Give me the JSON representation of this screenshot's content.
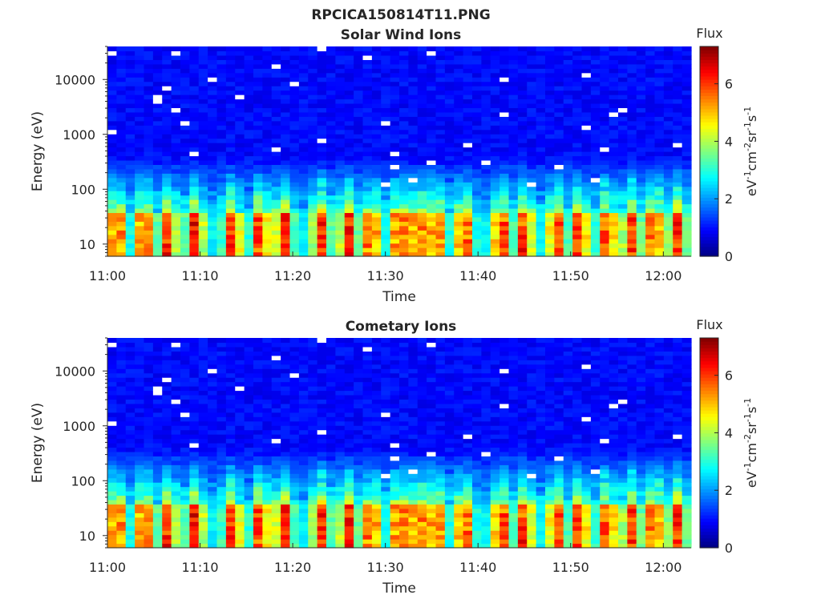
{
  "figure": {
    "filename": "RPCICA150814T11.PNG"
  },
  "chart_data": [
    {
      "type": "heatmap",
      "title": "Solar Wind Ions",
      "xlabel": "Time",
      "ylabel": "Energy (eV)",
      "x_tick_labels": [
        "11:00",
        "11:10",
        "11:20",
        "11:30",
        "11:40",
        "11:50",
        "12:00"
      ],
      "x_range": [
        "11:00",
        "12:03"
      ],
      "y_scale": "log",
      "y_tick_labels": [
        "10",
        "100",
        "1000",
        "10000"
      ],
      "y_range": [
        6,
        40000
      ],
      "colorbar": {
        "title": "Flux",
        "label": "eV-1cm-2sr-1s-1",
        "label_parts": [
          {
            "t": "eV",
            "sup": false
          },
          {
            "t": "-1",
            "sup": true
          },
          {
            "t": "cm",
            "sup": false
          },
          {
            "t": "-2",
            "sup": true
          },
          {
            "t": "sr",
            "sup": false
          },
          {
            "t": "-1",
            "sup": true
          },
          {
            "t": "s",
            "sup": false
          },
          {
            "t": "-1",
            "sup": true
          }
        ],
        "range": [
          0,
          7.3
        ],
        "tick_labels": [
          "0",
          "2",
          "4",
          "6"
        ],
        "colormap": "jet"
      },
      "data_description": {
        "time_bins": 64,
        "energy_bins": 48,
        "background_level": 0.7,
        "low_energy_band_max_eV": 40,
        "low_energy_peak_level": 6.8,
        "burst_times_min": [
          1,
          4,
          6.5,
          9.5,
          13.5,
          16.5,
          19,
          23,
          26,
          28.5,
          31.5,
          33.5,
          35.5,
          38.5,
          42.5,
          45,
          48.5,
          51,
          54,
          56.5,
          59,
          61.5
        ]
      }
    },
    {
      "type": "heatmap",
      "title": "Cometary Ions",
      "xlabel": "Time",
      "ylabel": "Energy (eV)",
      "x_tick_labels": [
        "11:00",
        "11:10",
        "11:20",
        "11:30",
        "11:40",
        "11:50",
        "12:00"
      ],
      "x_range": [
        "11:00",
        "12:03"
      ],
      "y_scale": "log",
      "y_tick_labels": [
        "10",
        "100",
        "1000",
        "10000"
      ],
      "y_range": [
        6,
        40000
      ],
      "colorbar": {
        "title": "Flux",
        "label": "eV-1cm-2sr-1s-1",
        "label_parts": [
          {
            "t": "eV",
            "sup": false
          },
          {
            "t": "-1",
            "sup": true
          },
          {
            "t": "cm",
            "sup": false
          },
          {
            "t": "-2",
            "sup": true
          },
          {
            "t": "sr",
            "sup": false
          },
          {
            "t": "-1",
            "sup": true
          },
          {
            "t": "s",
            "sup": false
          },
          {
            "t": "-1",
            "sup": true
          }
        ],
        "range": [
          0,
          7.3
        ],
        "tick_labels": [
          "0",
          "2",
          "4",
          "6"
        ],
        "colormap": "jet"
      },
      "data_description": {
        "time_bins": 64,
        "energy_bins": 48,
        "background_level": 0.7,
        "low_energy_band_max_eV": 40,
        "low_energy_peak_level": 6.8,
        "burst_times_min": [
          1,
          4,
          6.5,
          9.5,
          13.5,
          16.5,
          19,
          23,
          26,
          28.5,
          31.5,
          33.5,
          35.5,
          38.5,
          42.5,
          45,
          48.5,
          51,
          54,
          56.5,
          59,
          61.5
        ]
      }
    }
  ]
}
